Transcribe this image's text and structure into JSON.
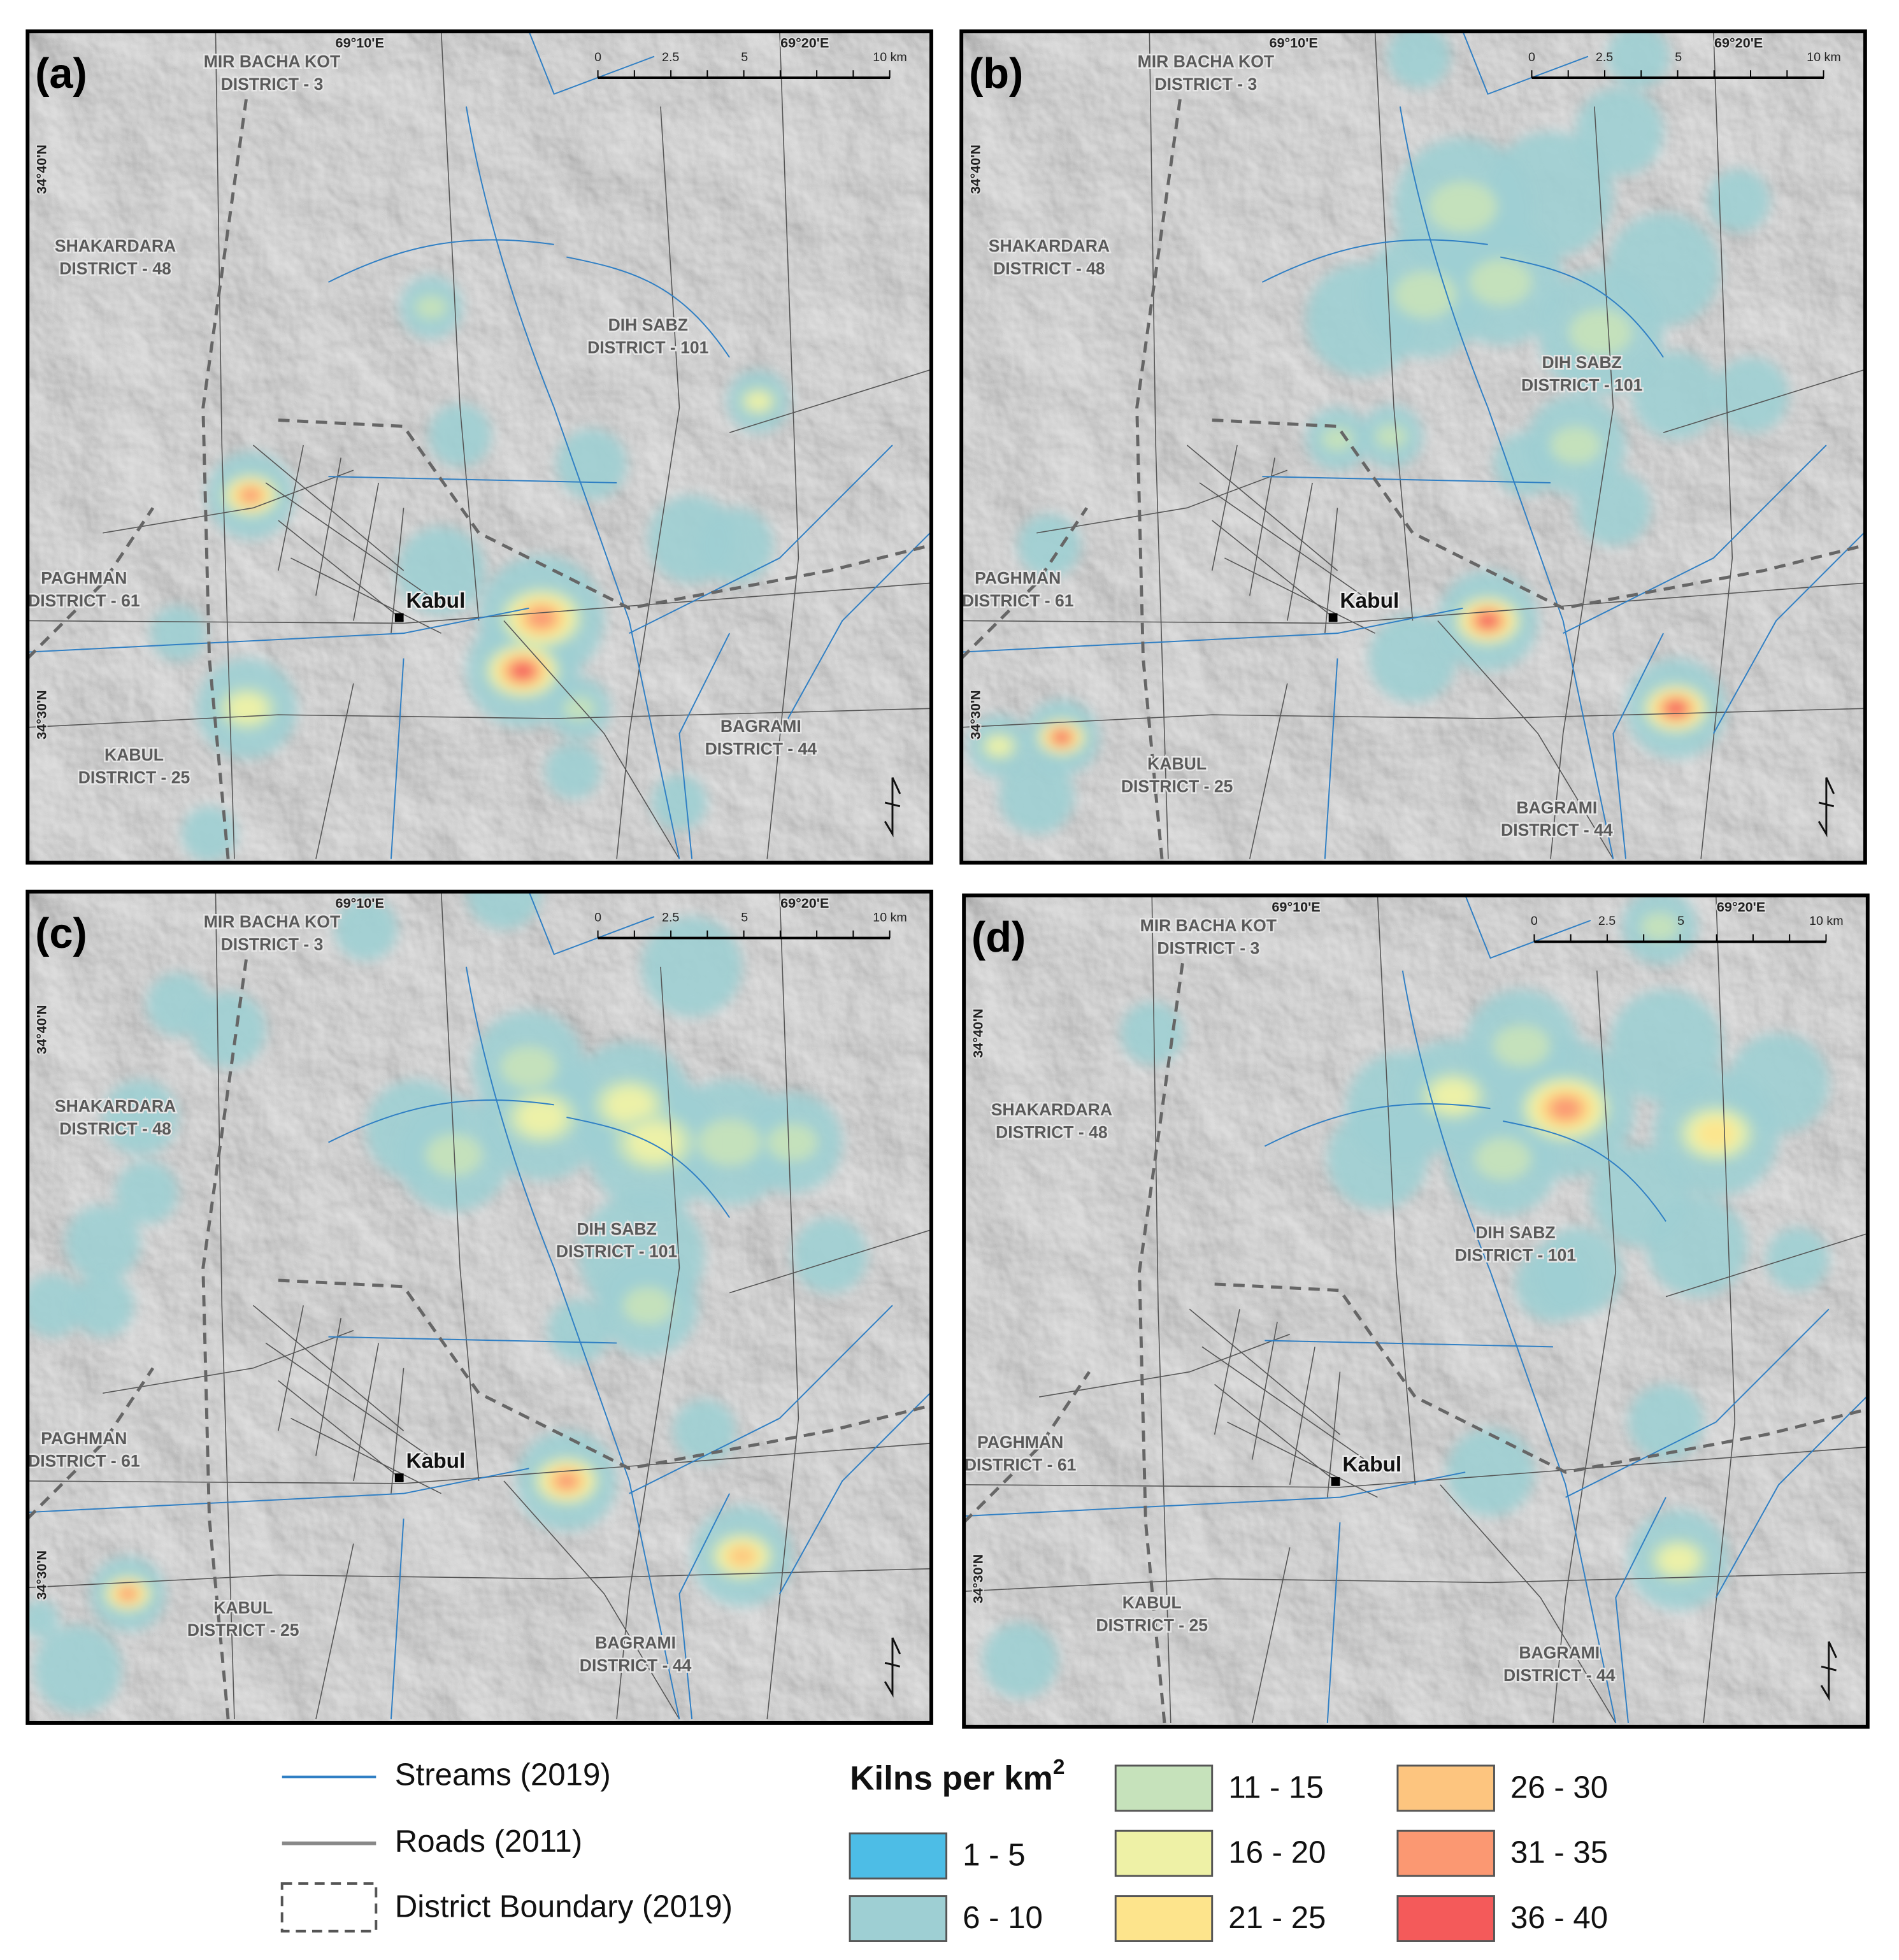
{
  "panels": [
    {
      "label": "(a)",
      "districts": [
        [
          "MIR BACHA KOT",
          "DISTRICT - 3"
        ],
        [
          "SHAKARDARA",
          "DISTRICT - 48"
        ],
        [
          "DIH SABZ",
          "DISTRICT - 101"
        ],
        [
          "PAGHMAN",
          "DISTRICT - 61"
        ],
        [
          "KABUL",
          "DISTRICT - 25"
        ],
        [
          "BAGRAMI",
          "DISTRICT - 44"
        ]
      ],
      "city": "Kabul",
      "longitudes": [
        "69°10'E",
        "69°20'E"
      ],
      "latitudes": [
        "34°40'N",
        "34°30'N"
      ],
      "scale_bar": [
        "0",
        "2.5",
        "5",
        "10 km"
      ]
    },
    {
      "label": "(b)",
      "districts": [
        [
          "MIR BACHA KOT",
          "DISTRICT - 3"
        ],
        [
          "SHAKARDARA",
          "DISTRICT - 48"
        ],
        [
          "DIH SABZ",
          "DISTRICT - 101"
        ],
        [
          "PAGHMAN",
          "DISTRICT - 61"
        ],
        [
          "KABUL",
          "DISTRICT - 25"
        ],
        [
          "BAGRAMI",
          "DISTRICT - 44"
        ]
      ],
      "city": "Kabul",
      "longitudes": [
        "69°10'E",
        "69°20'E"
      ],
      "latitudes": [
        "34°40'N",
        "34°30'N"
      ],
      "scale_bar": [
        "0",
        "2.5",
        "5",
        "10 km"
      ]
    },
    {
      "label": "(c)",
      "districts": [
        [
          "MIR BACHA KOT",
          "DISTRICT - 3"
        ],
        [
          "SHAKARDARA",
          "DISTRICT - 48"
        ],
        [
          "DIH SABZ",
          "DISTRICT - 101"
        ],
        [
          "PAGHMAN",
          "DISTRICT - 61"
        ],
        [
          "KABUL",
          "DISTRICT - 25"
        ],
        [
          "BAGRAMI",
          "DISTRICT - 44"
        ]
      ],
      "city": "Kabul",
      "longitudes": [
        "69°10'E",
        "69°20'E"
      ],
      "latitudes": [
        "34°40'N",
        "34°30'N"
      ],
      "scale_bar": [
        "0",
        "2.5",
        "5",
        "10 km"
      ]
    },
    {
      "label": "(d)",
      "districts": [
        [
          "MIR BACHA KOT",
          "DISTRICT - 3"
        ],
        [
          "SHAKARDARA",
          "DISTRICT - 48"
        ],
        [
          "DIH SABZ",
          "DISTRICT - 101"
        ],
        [
          "PAGHMAN",
          "DISTRICT - 61"
        ],
        [
          "KABUL",
          "DISTRICT - 25"
        ],
        [
          "BAGRAMI",
          "DISTRICT - 44"
        ]
      ],
      "city": "Kabul",
      "longitudes": [
        "69°10'E",
        "69°20'E"
      ],
      "latitudes": [
        "34°40'N",
        "34°30'N"
      ],
      "scale_bar": [
        "0",
        "2.5",
        "5",
        "10 km"
      ]
    }
  ],
  "legend": {
    "lines": [
      "Streams (2019)",
      "Roads (2011)",
      "District Boundary (2019)"
    ],
    "title": "Kilns per km",
    "title_superscript": "2",
    "classes": [
      {
        "label": "1 - 5",
        "color": "#4dbde6"
      },
      {
        "label": "6 - 10",
        "color": "#9ecfd3"
      },
      {
        "label": "11 - 15",
        "color": "#c6e2bb"
      },
      {
        "label": "16 - 20",
        "color": "#eef1a6"
      },
      {
        "label": "21 - 25",
        "color": "#fde48c"
      },
      {
        "label": "26 - 30",
        "color": "#fdc57f"
      },
      {
        "label": "31 - 35",
        "color": "#fb9872"
      },
      {
        "label": "36 - 40",
        "color": "#f45a5a"
      }
    ]
  }
}
